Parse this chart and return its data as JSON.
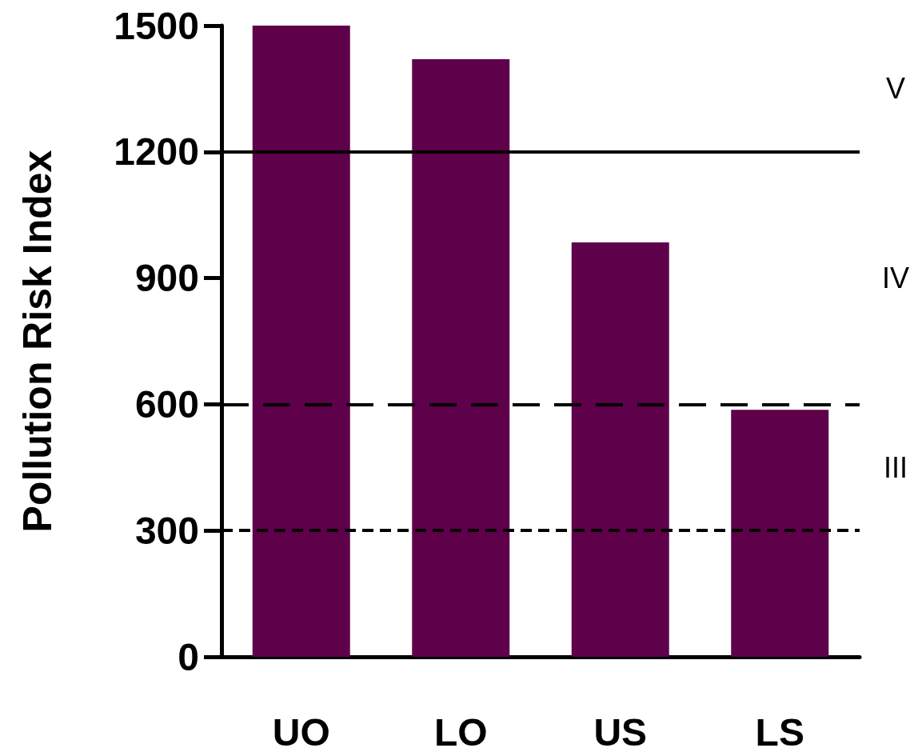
{
  "chart_data": {
    "type": "bar",
    "ylabel": "Pollution Risk Index",
    "categories": [
      "UO",
      "LO",
      "US",
      "LS"
    ],
    "series": [
      {
        "color": "#5f004b",
        "values": [
          1500,
          1420,
          985,
          587
        ]
      }
    ],
    "ylim": [
      0,
      1500
    ],
    "yticks": [
      0,
      300,
      600,
      900,
      1200,
      1500
    ],
    "grid": false,
    "ref_lines": [
      {
        "axis": "y",
        "value": 1200,
        "line_style": "solid",
        "color": "#000000"
      },
      {
        "axis": "y",
        "value": 600,
        "line_style": "dashed",
        "color": "#000000"
      },
      {
        "axis": "y",
        "value": 300,
        "line_style": "dotted",
        "color": "#000000"
      }
    ],
    "annotations": [
      "V",
      "IV",
      "III"
    ]
  }
}
